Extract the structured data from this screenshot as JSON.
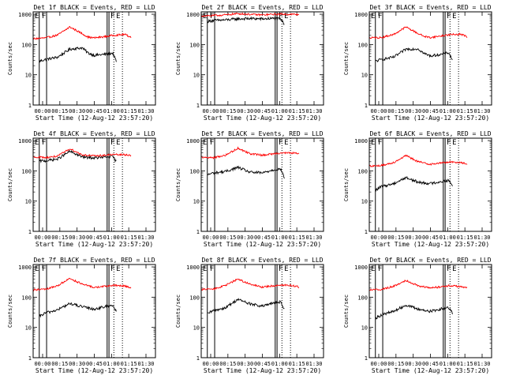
{
  "colors": {
    "black_series": "#000000",
    "red_series": "#ff0000",
    "axis": "#000000",
    "background": "#ffffff"
  },
  "common": {
    "xlabel": "Start Time (12-Aug-12 23:57:20)",
    "ylabel": "Counts/sec",
    "xticks": [
      "00:00",
      "00:15",
      "00:30",
      "00:45",
      "01:00",
      "01:15",
      "01:30"
    ],
    "yticks": [
      "1",
      "10",
      "100",
      "1000"
    ],
    "marker_labels": [
      "E",
      "F",
      "F",
      "E"
    ]
  },
  "chart_data": [
    {
      "type": "line",
      "title": "Det 1f BLACK = Events, RED = LLD",
      "xlim": [
        0,
        100
      ],
      "ylim": [
        1,
        1200
      ],
      "yscale": "log",
      "markers": {
        "solid": [
          5,
          11,
          60.5,
          62
        ],
        "dotted": [
          66,
          73
        ]
      },
      "series": [
        {
          "color": "black",
          "x": [
            5,
            10,
            20,
            30,
            40,
            45,
            50,
            60,
            65,
            68
          ],
          "y": [
            28,
            32,
            38,
            70,
            78,
            52,
            44,
            48,
            52,
            28
          ]
        },
        {
          "color": "red",
          "x": [
            0,
            10,
            20,
            30,
            40,
            45,
            50,
            60,
            65,
            75,
            80
          ],
          "y": [
            155,
            165,
            205,
            380,
            230,
            175,
            165,
            185,
            200,
            215,
            175
          ]
        }
      ]
    },
    {
      "type": "line",
      "title": "Det 2f BLACK = Events, RED = LLD",
      "xlim": [
        0,
        100
      ],
      "ylim": [
        1,
        1200
      ],
      "yscale": "log",
      "markers": {
        "solid": [
          5,
          11,
          60.5,
          62
        ],
        "dotted": [
          66,
          73
        ]
      },
      "series": [
        {
          "color": "black",
          "x": [
            5,
            10,
            20,
            30,
            40,
            50,
            60,
            65,
            68
          ],
          "y": [
            580,
            620,
            650,
            700,
            720,
            700,
            730,
            680,
            470
          ]
        },
        {
          "color": "red",
          "x": [
            0,
            10,
            20,
            30,
            40,
            50,
            60,
            65,
            75,
            80
          ],
          "y": [
            880,
            900,
            950,
            1050,
            990,
            950,
            1000,
            1010,
            990,
            980
          ]
        }
      ]
    },
    {
      "type": "line",
      "title": "Det 3f BLACK = Events, RED = LLD",
      "xlim": [
        0,
        100
      ],
      "ylim": [
        1,
        1200
      ],
      "yscale": "log",
      "markers": {
        "solid": [
          5,
          11,
          60.5,
          62
        ],
        "dotted": [
          66,
          73
        ]
      },
      "series": [
        {
          "color": "black",
          "x": [
            5,
            10,
            20,
            30,
            40,
            45,
            50,
            60,
            65,
            68
          ],
          "y": [
            28,
            32,
            38,
            70,
            72,
            50,
            42,
            48,
            54,
            30
          ]
        },
        {
          "color": "red",
          "x": [
            0,
            10,
            20,
            30,
            40,
            45,
            50,
            60,
            65,
            75,
            80
          ],
          "y": [
            165,
            170,
            215,
            380,
            230,
            185,
            170,
            195,
            210,
            220,
            180
          ]
        }
      ]
    },
    {
      "type": "line",
      "title": "Det 4f BLACK = Events, RED = LLD",
      "xlim": [
        0,
        100
      ],
      "ylim": [
        1,
        1200
      ],
      "yscale": "log",
      "markers": {
        "solid": [
          5,
          11,
          60.5,
          62
        ],
        "dotted": [
          66,
          73
        ]
      },
      "series": [
        {
          "color": "black",
          "x": [
            5,
            10,
            20,
            30,
            40,
            50,
            60,
            65,
            68
          ],
          "y": [
            210,
            215,
            245,
            440,
            290,
            265,
            285,
            300,
            200
          ]
        },
        {
          "color": "red",
          "x": [
            0,
            10,
            20,
            30,
            40,
            50,
            60,
            65,
            75,
            80
          ],
          "y": [
            290,
            275,
            305,
            540,
            340,
            310,
            330,
            345,
            340,
            330
          ]
        }
      ]
    },
    {
      "type": "line",
      "title": "Det 5f BLACK = Events, RED = LLD",
      "xlim": [
        0,
        100
      ],
      "ylim": [
        1,
        1200
      ],
      "yscale": "log",
      "markers": {
        "solid": [
          5,
          11,
          60.5,
          62
        ],
        "dotted": [
          66,
          73
        ]
      },
      "series": [
        {
          "color": "black",
          "x": [
            5,
            10,
            20,
            30,
            40,
            50,
            60,
            65,
            68
          ],
          "y": [
            75,
            85,
            95,
            130,
            90,
            85,
            110,
            115,
            60
          ]
        },
        {
          "color": "red",
          "x": [
            0,
            10,
            20,
            30,
            40,
            50,
            60,
            65,
            75,
            80
          ],
          "y": [
            280,
            270,
            330,
            560,
            370,
            330,
            370,
            390,
            390,
            360
          ]
        }
      ]
    },
    {
      "type": "line",
      "title": "Det 6f BLACK = Events, RED = LLD",
      "xlim": [
        0,
        100
      ],
      "ylim": [
        1,
        1200
      ],
      "yscale": "log",
      "markers": {
        "solid": [
          5,
          11,
          60.5,
          62
        ],
        "dotted": [
          66,
          73
        ]
      },
      "series": [
        {
          "color": "black",
          "x": [
            5,
            10,
            20,
            30,
            40,
            50,
            60,
            65,
            68
          ],
          "y": [
            23,
            30,
            38,
            60,
            42,
            38,
            45,
            48,
            32
          ]
        },
        {
          "color": "red",
          "x": [
            0,
            10,
            20,
            30,
            40,
            50,
            60,
            65,
            75,
            80
          ],
          "y": [
            145,
            150,
            190,
            320,
            200,
            165,
            185,
            195,
            190,
            165
          ]
        }
      ]
    },
    {
      "type": "line",
      "title": "Det 7f BLACK = Events, RED = LLD",
      "xlim": [
        0,
        100
      ],
      "ylim": [
        1,
        1200
      ],
      "yscale": "log",
      "markers": {
        "solid": [
          5,
          11,
          60.5,
          62
        ],
        "dotted": [
          66,
          73
        ]
      },
      "series": [
        {
          "color": "black",
          "x": [
            5,
            10,
            20,
            30,
            40,
            50,
            60,
            65,
            68
          ],
          "y": [
            23,
            30,
            38,
            62,
            48,
            40,
            50,
            55,
            33
          ]
        },
        {
          "color": "red",
          "x": [
            0,
            10,
            20,
            30,
            40,
            50,
            60,
            65,
            75,
            80
          ],
          "y": [
            175,
            180,
            240,
            420,
            270,
            210,
            230,
            245,
            235,
            205
          ]
        }
      ]
    },
    {
      "type": "line",
      "title": "Det 8f BLACK = Events, RED = LLD",
      "xlim": [
        0,
        100
      ],
      "ylim": [
        1,
        1200
      ],
      "yscale": "log",
      "markers": {
        "solid": [
          5,
          11,
          60.5,
          62
        ],
        "dotted": [
          66,
          73
        ]
      },
      "series": [
        {
          "color": "black",
          "x": [
            5,
            10,
            20,
            30,
            40,
            50,
            60,
            65,
            68
          ],
          "y": [
            28,
            36,
            45,
            85,
            60,
            50,
            65,
            70,
            40
          ]
        },
        {
          "color": "red",
          "x": [
            0,
            10,
            20,
            30,
            40,
            50,
            60,
            65,
            75,
            80
          ],
          "y": [
            180,
            185,
            245,
            400,
            265,
            215,
            240,
            255,
            240,
            215
          ]
        }
      ]
    },
    {
      "type": "line",
      "title": "Det 9f BLACK = Events, RED = LLD",
      "xlim": [
        0,
        100
      ],
      "ylim": [
        1,
        1200
      ],
      "yscale": "log",
      "markers": {
        "solid": [
          5,
          11,
          60.5,
          62
        ],
        "dotted": [
          66,
          73
        ]
      },
      "series": [
        {
          "color": "black",
          "x": [
            5,
            10,
            20,
            30,
            40,
            50,
            60,
            65,
            68
          ],
          "y": [
            20,
            26,
            34,
            55,
            40,
            34,
            42,
            46,
            30
          ]
        },
        {
          "color": "red",
          "x": [
            0,
            10,
            20,
            30,
            40,
            50,
            60,
            65,
            75,
            80
          ],
          "y": [
            175,
            180,
            230,
            360,
            240,
            200,
            225,
            240,
            225,
            200
          ]
        }
      ]
    }
  ]
}
